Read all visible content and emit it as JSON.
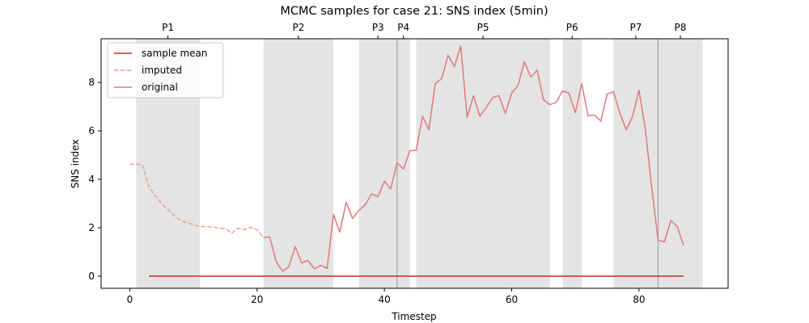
{
  "chart_data": {
    "type": "line",
    "title": "MCMC samples for case 21: SNS index (5min)",
    "xlabel": "Timestep",
    "ylabel": "SNS index",
    "xlim": [
      -4.5,
      94
    ],
    "ylim": [
      -0.5,
      9.8
    ],
    "xticks": [
      0,
      20,
      40,
      60,
      80
    ],
    "yticks": [
      0,
      2,
      4,
      6,
      8
    ],
    "legend_position": "top-left",
    "legend": [
      {
        "label": "sample mean",
        "style": "solid",
        "color": "#d62728"
      },
      {
        "label": "imputed",
        "style": "dashed",
        "color": "#e8a09a"
      },
      {
        "label": "original",
        "style": "solid",
        "color": "#e07a7a"
      }
    ],
    "phases": [
      {
        "label": "P1",
        "start": 1,
        "end": 11
      },
      {
        "label": "P2",
        "start": 21,
        "end": 32
      },
      {
        "label": "P3",
        "start": 36,
        "end": 42
      },
      {
        "label": "P4",
        "start": 42,
        "end": 44
      },
      {
        "label": "P5",
        "start": 45,
        "end": 66
      },
      {
        "label": "P6",
        "start": 68,
        "end": 71
      },
      {
        "label": "P7",
        "start": 76,
        "end": 83
      },
      {
        "label": "P8",
        "start": 83,
        "end": 90
      }
    ],
    "phase_boundaries": [
      42,
      83
    ],
    "series": [
      {
        "name": "imputed",
        "style": "dashed",
        "x": [
          0,
          1,
          2,
          3,
          4,
          5,
          6,
          7,
          8,
          9,
          10,
          11,
          12,
          13,
          14,
          15,
          16,
          17,
          18,
          19,
          20,
          21
        ],
        "values": [
          4.62,
          4.62,
          4.6,
          3.7,
          3.3,
          3.0,
          2.75,
          2.5,
          2.3,
          2.2,
          2.12,
          2.05,
          2.05,
          2.03,
          1.98,
          1.97,
          1.77,
          1.98,
          1.92,
          2.02,
          1.92,
          1.6
        ]
      },
      {
        "name": "original",
        "style": "solid",
        "x": [
          21,
          22,
          23,
          24,
          25,
          26,
          27,
          28,
          29,
          30,
          31,
          32,
          33,
          34,
          35,
          36,
          37,
          38,
          39,
          40,
          41,
          42,
          43,
          44,
          45,
          46,
          47,
          48,
          49,
          50,
          51,
          52,
          53,
          54,
          55,
          56,
          57,
          58,
          59,
          60,
          61,
          62,
          63,
          64,
          65,
          66,
          67,
          68,
          69,
          70,
          71,
          72,
          73,
          74,
          75,
          76,
          77,
          78,
          79,
          80,
          81,
          82,
          83,
          84,
          85,
          86,
          87
        ],
        "values": [
          1.6,
          1.62,
          0.6,
          0.2,
          0.4,
          1.22,
          0.55,
          0.65,
          0.3,
          0.45,
          0.32,
          2.55,
          1.82,
          3.05,
          2.38,
          2.72,
          2.95,
          3.4,
          3.28,
          3.92,
          3.6,
          4.68,
          4.42,
          5.18,
          5.2,
          6.6,
          6.05,
          7.95,
          8.15,
          9.12,
          8.65,
          9.5,
          6.55,
          7.45,
          6.6,
          6.95,
          7.38,
          7.45,
          6.72,
          7.55,
          7.88,
          8.85,
          8.22,
          8.5,
          7.28,
          7.08,
          7.18,
          7.65,
          7.55,
          6.75,
          7.95,
          6.62,
          6.65,
          6.4,
          7.52,
          7.62,
          6.72,
          6.05,
          6.6,
          7.68,
          6.05,
          3.65,
          1.48,
          1.42,
          2.3,
          2.05,
          1.28
        ]
      },
      {
        "name": "sample mean",
        "style": "solid",
        "x": [
          3,
          87
        ],
        "values": [
          0.0,
          0.0
        ]
      }
    ]
  }
}
